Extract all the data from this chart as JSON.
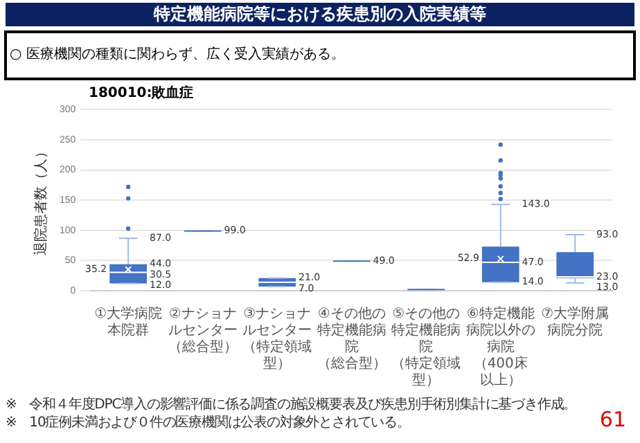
{
  "chart_data": {
    "type": "box",
    "title": "特定機能病院等における疾患別の入院実績等",
    "subtitle": "180010:敗血症",
    "ylabel": "退院患者数（人）",
    "categories": [
      "①大学病院本院群",
      "②ナショナルセンター（総合型）",
      "③ナショナルセンター（特定領域型）",
      "④その他の特定機能病院（総合型）",
      "⑤その他の特定機能病院（特定領域型）",
      "⑥特定機能病院以外の病院（400床以上）",
      "⑦大学附属病院分院"
    ],
    "color": "#4472c4",
    "boxes": [
      {
        "low": 12,
        "q1": 12,
        "median": 30.5,
        "q3": 44,
        "high": 87,
        "mean": 35.2,
        "outliers": [
          103,
          153,
          172
        ]
      },
      {
        "low": 99,
        "q1": 99,
        "median": 99,
        "q3": 99,
        "high": 99
      },
      {
        "low": 7,
        "q1": 7,
        "median": 14,
        "q3": 21,
        "high": 21
      },
      {
        "low": 49,
        "q1": 49,
        "median": 49,
        "q3": 49,
        "high": 49
      },
      {
        "low": 2,
        "q1": 2,
        "median": 2,
        "q3": 2,
        "high": 2
      },
      {
        "low": 14,
        "q1": 14,
        "median": 47,
        "q3": 73,
        "high": 143,
        "mean": 52.9,
        "outliers": [
          152,
          162,
          173,
          186,
          192,
          195,
          216,
          242
        ]
      },
      {
        "low": 13,
        "q1": 21,
        "median": 23,
        "q3": 64,
        "high": 93
      }
    ],
    "ylim": [
      0,
      300
    ],
    "yticks": [
      0,
      50,
      100,
      150,
      200,
      250,
      300
    ],
    "grid": "y",
    "legend": false,
    "annotations": [
      "○ 医療機関の種類に関わらず、広く受入実績がある。",
      "※　令和４年度DPC導入の影響評価に係る調査の施設概要表及び疾患別手術別集計に基づき作成。",
      "※　10症例未満および０件の医療機関は公表の対象外とされている。",
      "61",
      {
        "text": "87.0",
        "x": "①大学病院本院群",
        "y": 87
      },
      {
        "text": "44.0",
        "x": "①大学病院本院群",
        "y": 44
      },
      {
        "text": "35.2",
        "x": "①大学病院本院群",
        "y": 35.2
      },
      {
        "text": "30.5",
        "x": "①大学病院本院群",
        "y": 30.5
      },
      {
        "text": "12.0",
        "x": "①大学病院本院群",
        "y": 12
      },
      {
        "text": "99.0",
        "x": "②ナショナルセンター（総合型）",
        "y": 99
      },
      {
        "text": "21.0",
        "x": "③ナショナルセンター（特定領域型）",
        "y": 21
      },
      {
        "text": "7.0",
        "x": "③ナショナルセンター（特定領域型）",
        "y": 7
      },
      {
        "text": "49.0",
        "x": "④その他の特定機能病院（総合型）",
        "y": 49
      },
      {
        "text": "143.0",
        "x": "⑥特定機能病院以外の病院（400床以上）",
        "y": 143
      },
      {
        "text": "52.9",
        "x": "⑥特定機能病院以外の病院（400床以上）",
        "y": 52.9
      },
      {
        "text": "47.0",
        "x": "⑥特定機能病院以外の病院（400床以上）",
        "y": 47
      },
      {
        "text": "14.0",
        "x": "⑥特定機能病院以外の病院（400床以上）",
        "y": 14
      },
      {
        "text": "93.0",
        "x": "⑦大学附属病院分院",
        "y": 93
      },
      {
        "text": "23.0",
        "x": "⑦大学附属病院分院",
        "y": 23
      },
      {
        "text": "13.0",
        "x": "⑦大学附属病院分院",
        "y": 13
      }
    ]
  }
}
